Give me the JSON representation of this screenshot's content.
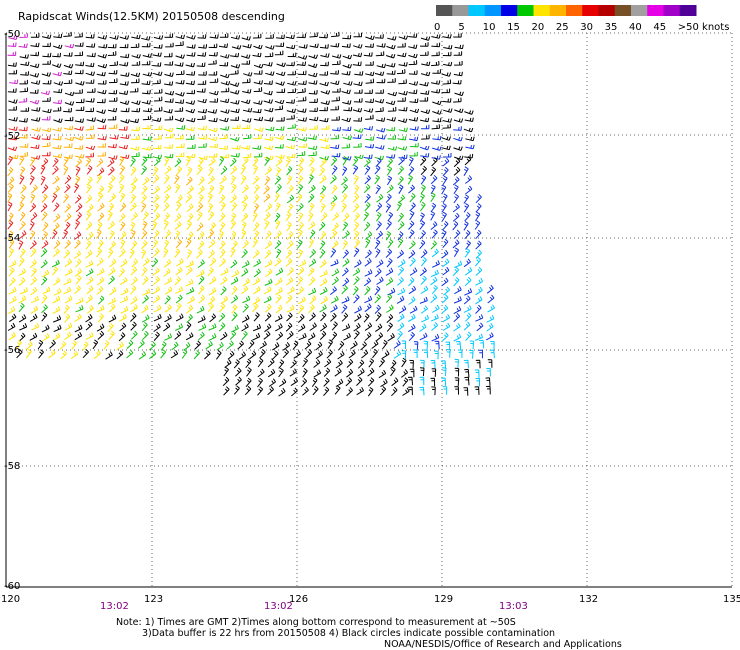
{
  "title": "Rapidscat Winds(12.5KM) 20150508 descending",
  "legend": {
    "labels": [
      "0",
      "5",
      "10",
      "15",
      "20",
      "25",
      "30",
      "35",
      "40",
      "45",
      ">50 knots"
    ],
    "colors": [
      "#555555",
      "#999999",
      "#00c8ff",
      "#0096ff",
      "#0000e6",
      "#00c800",
      "#ffe400",
      "#ffb400",
      "#ff6400",
      "#e60000",
      "#b40000",
      "#785028",
      "#a0a0a0",
      "#e600e6",
      "#a000c8",
      "#500096"
    ]
  },
  "axes": {
    "lat_labels": [
      "-50",
      "-52",
      "-54",
      "-56",
      "-58",
      "-60"
    ],
    "lon_labels": [
      "120",
      "123",
      "126",
      "129",
      "132",
      "135"
    ],
    "time_labels": [
      "13:02",
      "13:02",
      "13:03"
    ]
  },
  "swath": {
    "lon_range": [
      120,
      130.2
    ],
    "lat_range": [
      -56.5,
      -50
    ]
  },
  "notes": [
    "Note: 1) Times are GMT 2)Times along bottom correspond to measurement at ~50S",
    "3)Data buffer is 22 hrs from 20150508 4) Black circles indicate possible contamination"
  ],
  "credit": "NOAA/NESDIS/Office of Research and Applications"
}
